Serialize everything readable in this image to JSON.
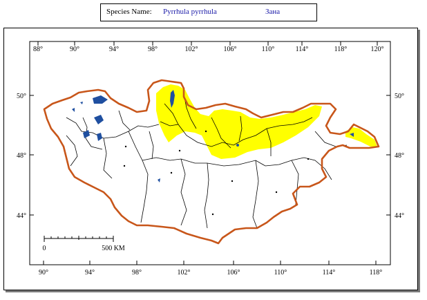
{
  "header": {
    "species_label": "Species Name:",
    "species_value": "Pyrrhula pyrrhula",
    "local_name": "Зана"
  },
  "map": {
    "top_longitude_ticks": [
      "88°",
      "90°",
      "94°",
      "98°",
      "102°",
      "106°",
      "110°",
      "114°",
      "118°",
      "120°"
    ],
    "bottom_longitude_ticks": [
      "90°",
      "94°",
      "98°",
      "102°",
      "106°",
      "110°",
      "114°",
      "118°"
    ],
    "left_latitude_ticks": [
      "50°",
      "48°",
      "44°"
    ],
    "right_latitude_ticks": [
      "50°",
      "48°",
      "44°"
    ],
    "scale_bar": {
      "start_label": "0",
      "end_label": "500 KM"
    },
    "colors": {
      "border": "#c8561a",
      "range": "#ffff00",
      "lakes": "#1f4fa0",
      "rivers": "#000000"
    }
  }
}
